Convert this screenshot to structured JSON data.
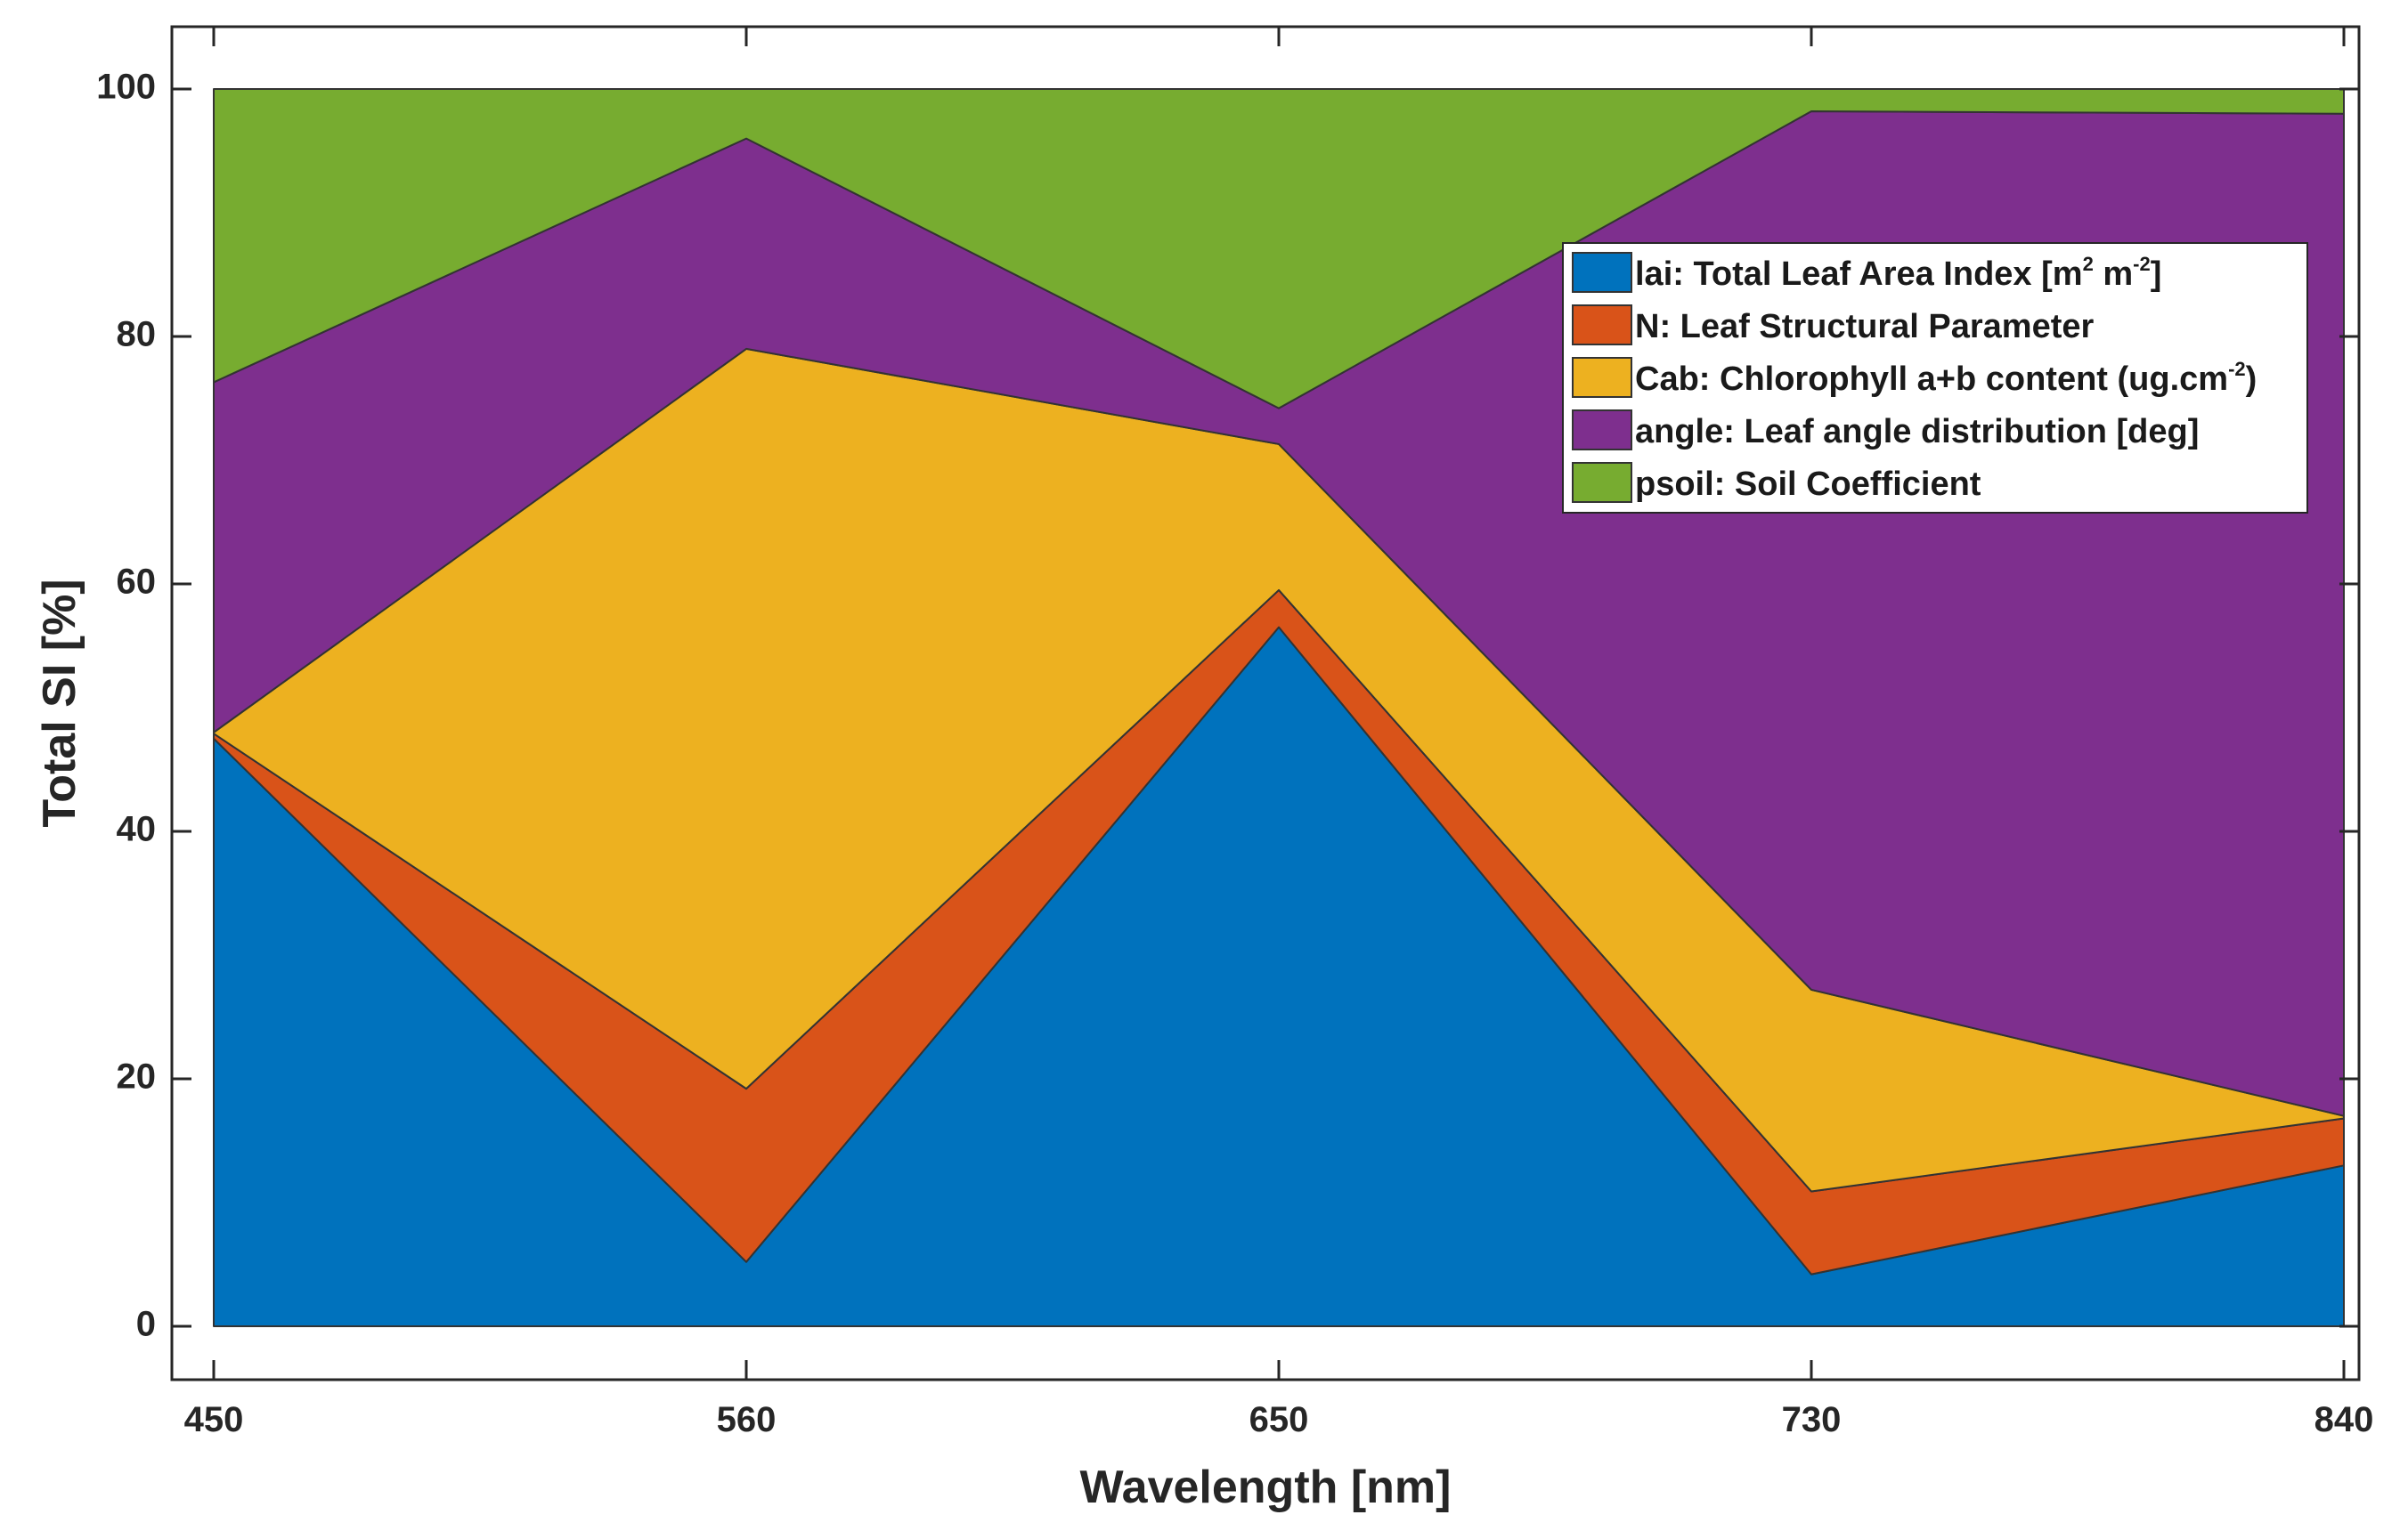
{
  "chart_data": {
    "type": "area",
    "stacked": true,
    "x": [
      450,
      560,
      650,
      730,
      840
    ],
    "xlabel": "Wavelength [nm]",
    "ylabel": "Total SI [%]",
    "ylim": [
      0,
      100
    ],
    "yticks": [
      0,
      20,
      40,
      60,
      80,
      100
    ],
    "xtick_labels": [
      "450",
      "560",
      "650",
      "730",
      "840"
    ],
    "ytick_labels": [
      "0",
      "20",
      "40",
      "60",
      "80",
      "100"
    ],
    "legend_position": "top-right",
    "series": [
      {
        "name": "lai: Total Leaf Area Index [m² m⁻²]",
        "label_main": "lai: Total Leaf Area Index [m",
        "label_sup1": "2",
        "label_mid": " m",
        "label_sup2": "-2",
        "label_end": "]",
        "color": "#0072BD",
        "values": [
          47.5,
          5.2,
          56.5,
          4.2,
          13.0
        ]
      },
      {
        "name": "N: Leaf Structural Parameter",
        "color": "#D95319",
        "values": [
          0.4,
          14.0,
          3.0,
          6.7,
          3.8
        ]
      },
      {
        "name": "Cab: Chlorophyll a+b content (ug.cm⁻²)",
        "label_main": "Cab: Chlorophyll a+b content (ug.cm",
        "label_sup": "-2",
        "label_end": ")",
        "color": "#EDB120",
        "values": [
          0.1,
          59.8,
          11.8,
          16.3,
          0.2
        ]
      },
      {
        "name": "angle: Leaf angle distribution [deg]",
        "color": "#7E2F8E",
        "values": [
          28.3,
          17.0,
          2.9,
          71.0,
          81.0
        ]
      },
      {
        "name": "psoil: Soil Coefficient",
        "color": "#77AC30",
        "values": [
          23.7,
          4.0,
          25.8,
          1.8,
          2.0
        ]
      }
    ]
  }
}
